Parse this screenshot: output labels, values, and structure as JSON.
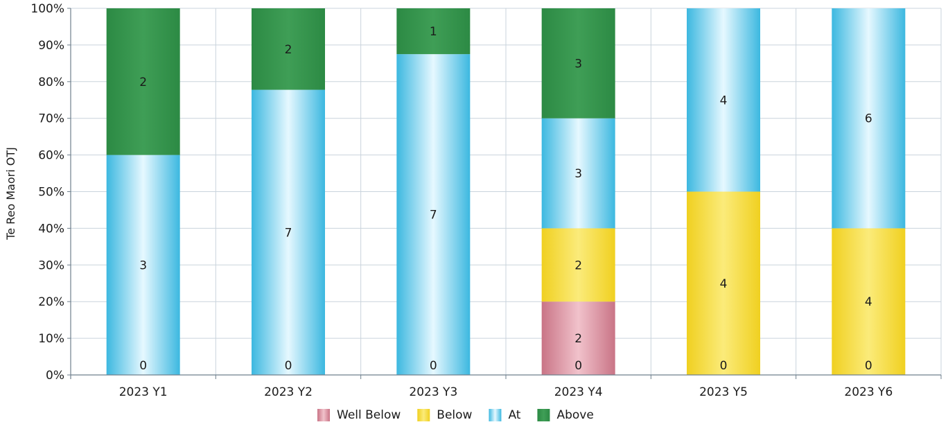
{
  "chart_data": {
    "type": "bar",
    "stacked": "percent",
    "ylabel": "Te Reo Maori OTJ",
    "xlabel": "",
    "ylim": [
      0,
      100
    ],
    "yticks": [
      "0%",
      "10%",
      "20%",
      "30%",
      "40%",
      "50%",
      "60%",
      "70%",
      "80%",
      "90%",
      "100%"
    ],
    "grid": true,
    "legend_position": "bottom",
    "categories": [
      "2023 Y1",
      "2023 Y2",
      "2023 Y3",
      "2023 Y4",
      "2023 Y5",
      "2023 Y6"
    ],
    "series": [
      {
        "name": "Well Below",
        "color": "#d98a98",
        "values": [
          0,
          0,
          0,
          2,
          0,
          0
        ]
      },
      {
        "name": "Below",
        "color": "#f2d533",
        "values": [
          0,
          0,
          0,
          2,
          4,
          4
        ]
      },
      {
        "name": "At",
        "color": "#3ec0e6",
        "values": [
          3,
          7,
          7,
          3,
          4,
          6
        ]
      },
      {
        "name": "Above",
        "color": "#2f8f4a",
        "values": [
          2,
          2,
          1,
          3,
          0,
          0
        ]
      }
    ]
  }
}
